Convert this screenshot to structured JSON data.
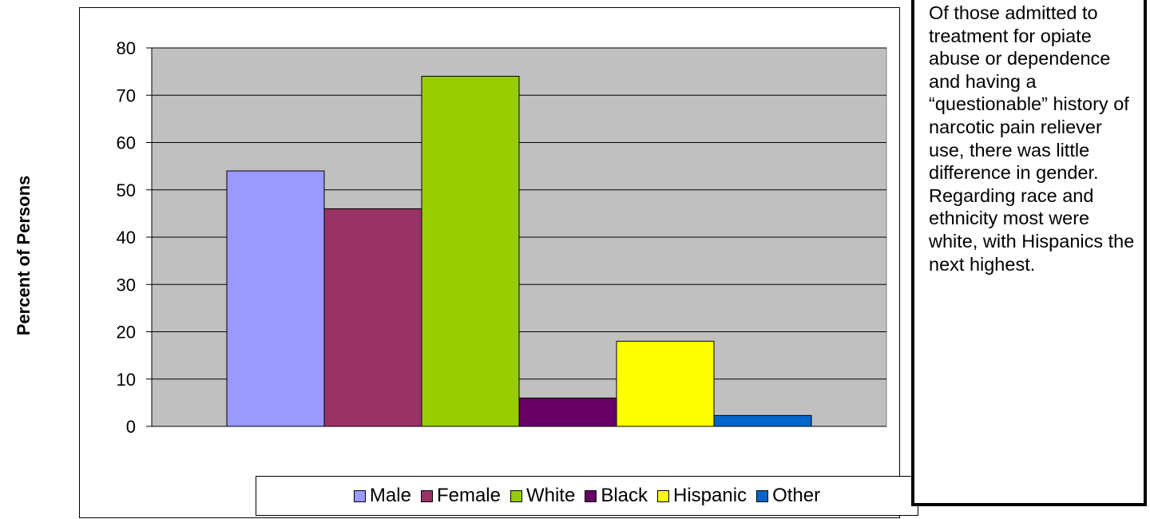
{
  "chart_data": {
    "type": "bar",
    "ylabel": "Percent of Persons",
    "ylim": [
      0,
      80
    ],
    "yticks": [
      0,
      10,
      20,
      30,
      40,
      50,
      60,
      70,
      80
    ],
    "grid": true,
    "legend_position": "bottom",
    "series": [
      {
        "name": "Male",
        "values": [
          54
        ],
        "color": "#9999ff"
      },
      {
        "name": "Female",
        "values": [
          46
        ],
        "color": "#993366"
      },
      {
        "name": "White",
        "values": [
          74
        ],
        "color": "#99cc00"
      },
      {
        "name": "Black",
        "values": [
          6
        ],
        "color": "#660066"
      },
      {
        "name": "Hispanic",
        "values": [
          18
        ],
        "color": "#ffff00"
      },
      {
        "name": "Other",
        "values": [
          2.3
        ],
        "color": "#0066cc"
      }
    ],
    "plot_background": "#c0c0c0"
  },
  "note_text": "Of those admitted to treatment for opiate abuse or dependence and having a “questionable” history of narcotic pain reliever use, there was little difference in gender.  Regarding race and ethnicity most were white, with Hispanics the next highest."
}
